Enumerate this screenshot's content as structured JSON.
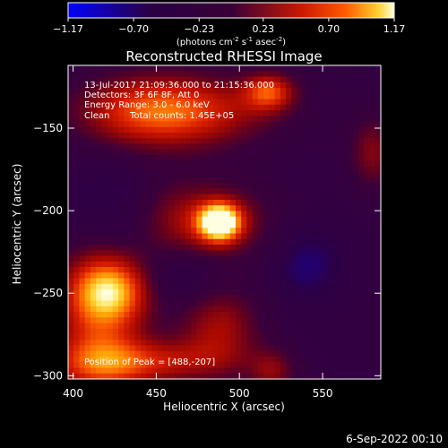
{
  "chart_data": {
    "type": "heatmap",
    "title": "Reconstructed RHESSI Image",
    "xlabel": "Heliocentric X (arcsec)",
    "ylabel": "Heliocentric Y (arcsec)",
    "xlim": [
      397,
      585
    ],
    "ylim": [
      -302,
      -112
    ],
    "xticks": [
      400,
      450,
      500,
      550
    ],
    "yticks": [
      -150,
      -200,
      -250,
      -300
    ],
    "colorbar": {
      "range": [
        -1.17,
        1.17
      ],
      "ticks": [
        "-1.17",
        "-0.70",
        "-0.23",
        "0.23",
        "0.70",
        "1.17"
      ],
      "unit_text": "(photons cm",
      "unit_exp1": "-2",
      "unit_mid": " s",
      "unit_exp2": "-1",
      "unit_mid2": " asec",
      "unit_exp3": "-2",
      "unit_close": ")"
    },
    "annotations": [
      "13-Jul-2017 21:09:36.000 to 21:15:36.000",
      "Detectors: 3F 6F 8F, Att 0",
      "Energy Range: 3.0 - 6.0 keV",
      "Clean",
      "Total counts: 1.45E+05"
    ],
    "peak_label": "Position of Peak = [488,-207]",
    "peak": {
      "x": 488,
      "y": -207,
      "value": 1.17
    },
    "background_value": -0.4,
    "sources": [
      {
        "x": 488,
        "y": -207,
        "sx": 9,
        "sy": 8,
        "amp": 1.55
      },
      {
        "x": 490,
        "y": -207,
        "sx": 24,
        "sy": 18,
        "amp": 0.55
      },
      {
        "x": 518,
        "y": -128,
        "sx": 11,
        "sy": 8,
        "amp": 0.85
      },
      {
        "x": 470,
        "y": -140,
        "sx": 38,
        "sy": 16,
        "amp": 0.75
      },
      {
        "x": 440,
        "y": -140,
        "sx": 30,
        "sy": 16,
        "amp": 0.55
      },
      {
        "x": 423,
        "y": -248,
        "sx": 17,
        "sy": 14,
        "amp": 0.95
      },
      {
        "x": 415,
        "y": -270,
        "sx": 20,
        "sy": 38,
        "amp": 0.8
      },
      {
        "x": 440,
        "y": -292,
        "sx": 38,
        "sy": 10,
        "amp": 0.75
      },
      {
        "x": 488,
        "y": -270,
        "sx": 18,
        "sy": 18,
        "amp": 0.65
      },
      {
        "x": 520,
        "y": -298,
        "sx": 10,
        "sy": 10,
        "amp": 0.5
      },
      {
        "x": 460,
        "y": -205,
        "sx": 16,
        "sy": 18,
        "amp": 0.35
      },
      {
        "x": 580,
        "y": -165,
        "sx": 10,
        "sy": 16,
        "amp": 0.55
      },
      {
        "x": 540,
        "y": -232,
        "sx": 16,
        "sy": 16,
        "amp": -0.35
      },
      {
        "x": 420,
        "y": -200,
        "sx": 20,
        "sy": 22,
        "amp": -0.25
      },
      {
        "x": 465,
        "y": -240,
        "sx": 18,
        "sy": 12,
        "amp": -0.3
      }
    ]
  },
  "footer": {
    "date": "6-Sep-2022 00:10"
  }
}
